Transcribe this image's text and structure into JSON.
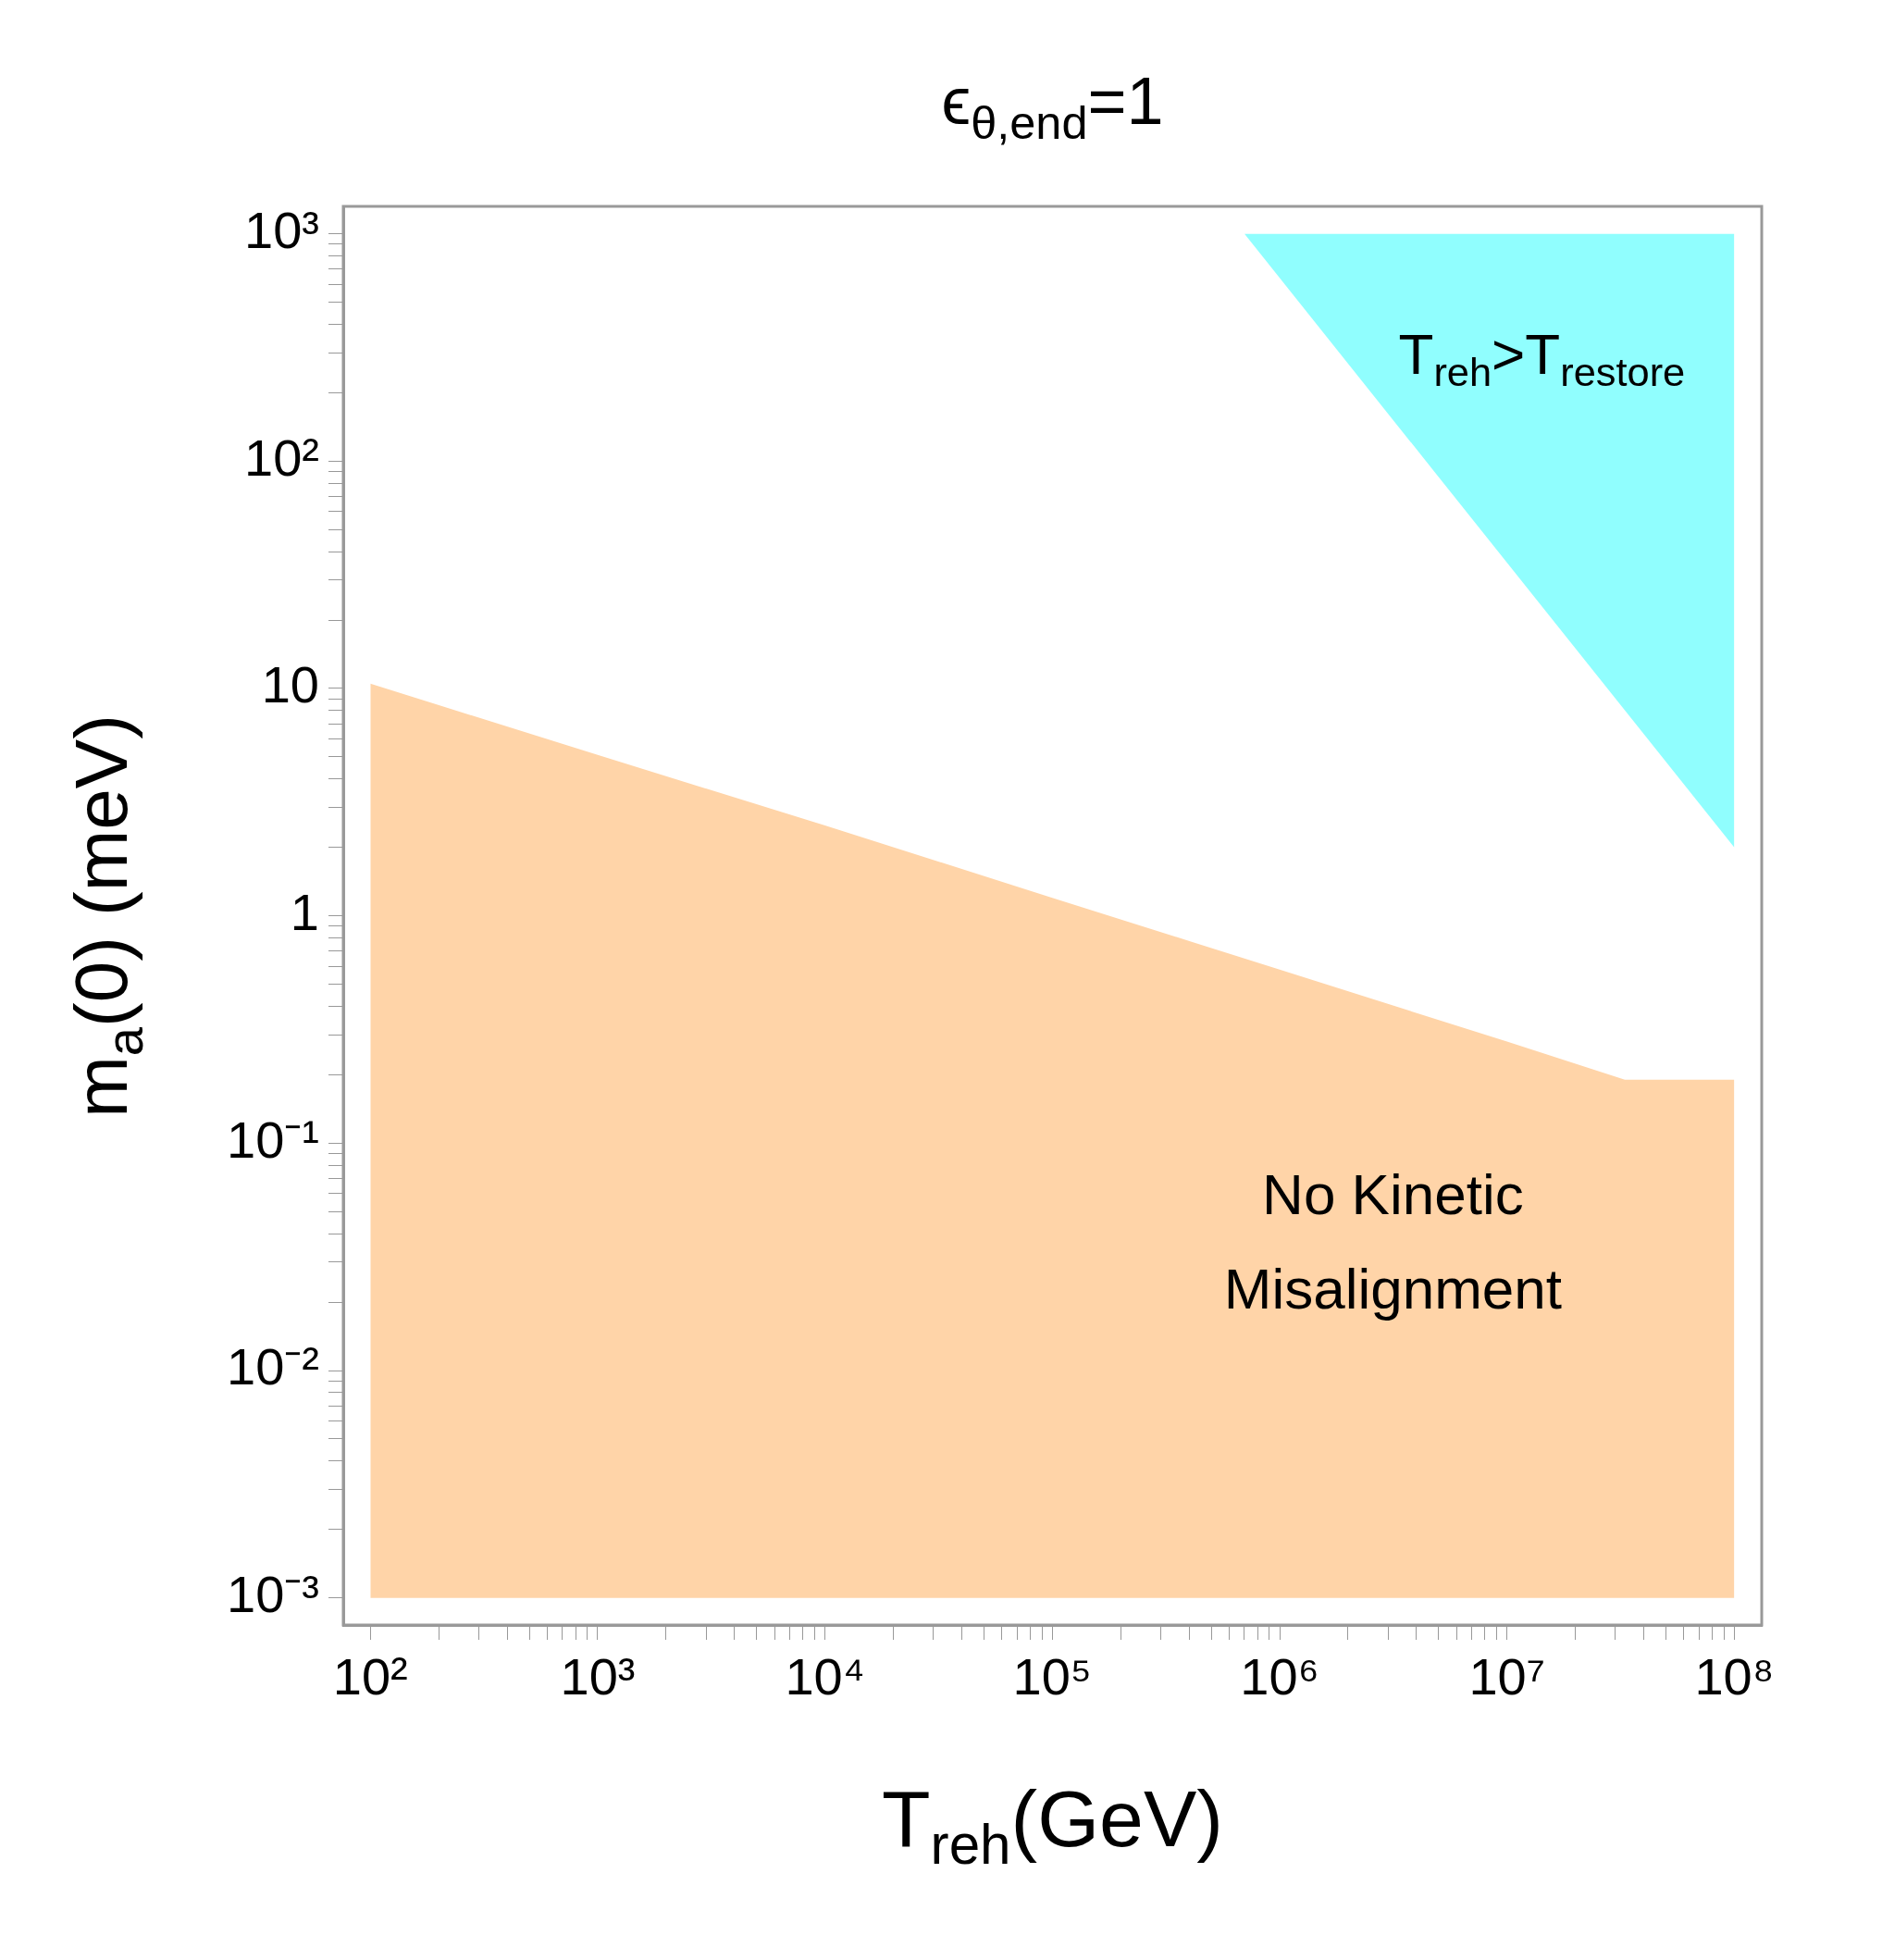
{
  "chart_data": {
    "type": "area",
    "title": "ϵ$_{θ,end}$=1",
    "xlabel": "T$_{reh}$(GeV)",
    "ylabel": "m$_{a}$(0) (meV)",
    "log": "xy",
    "legend": false,
    "xlim": [
      76,
      132000000
    ],
    "ylim": [
      0.00076,
      1320
    ],
    "xticks": [
      {
        "value": 100,
        "label": "10²"
      },
      {
        "value": 200,
        "label": null
      },
      {
        "value": 300,
        "label": null
      },
      {
        "value": 400,
        "label": null
      },
      {
        "value": 500,
        "label": null
      },
      {
        "value": 600,
        "label": null
      },
      {
        "value": 700,
        "label": null
      },
      {
        "value": 800,
        "label": null
      },
      {
        "value": 900,
        "label": null
      },
      {
        "value": 1000,
        "label": "10³"
      },
      {
        "value": 2000,
        "label": null
      },
      {
        "value": 3000,
        "label": null
      },
      {
        "value": 4000,
        "label": null
      },
      {
        "value": 5000,
        "label": null
      },
      {
        "value": 6000,
        "label": null
      },
      {
        "value": 7000,
        "label": null
      },
      {
        "value": 8000,
        "label": null
      },
      {
        "value": 9000,
        "label": null
      },
      {
        "value": 10000,
        "label": "10⁴"
      },
      {
        "value": 20000,
        "label": null
      },
      {
        "value": 30000,
        "label": null
      },
      {
        "value": 40000,
        "label": null
      },
      {
        "value": 50000,
        "label": null
      },
      {
        "value": 60000,
        "label": null
      },
      {
        "value": 70000,
        "label": null
      },
      {
        "value": 80000,
        "label": null
      },
      {
        "value": 90000,
        "label": null
      },
      {
        "value": 100000,
        "label": "10⁵"
      },
      {
        "value": 200000,
        "label": null
      },
      {
        "value": 300000,
        "label": null
      },
      {
        "value": 400000,
        "label": null
      },
      {
        "value": 500000,
        "label": null
      },
      {
        "value": 600000,
        "label": null
      },
      {
        "value": 700000,
        "label": null
      },
      {
        "value": 800000,
        "label": null
      },
      {
        "value": 900000,
        "label": null
      },
      {
        "value": 1000000,
        "label": "10⁶"
      },
      {
        "value": 2000000,
        "label": null
      },
      {
        "value": 3000000,
        "label": null
      },
      {
        "value": 4000000,
        "label": null
      },
      {
        "value": 5000000,
        "label": null
      },
      {
        "value": 6000000,
        "label": null
      },
      {
        "value": 7000000,
        "label": null
      },
      {
        "value": 8000000,
        "label": null
      },
      {
        "value": 9000000,
        "label": null
      },
      {
        "value": 10000000,
        "label": "10⁷"
      },
      {
        "value": 20000000,
        "label": null
      },
      {
        "value": 30000000,
        "label": null
      },
      {
        "value": 40000000,
        "label": null
      },
      {
        "value": 50000000,
        "label": null
      },
      {
        "value": 60000000,
        "label": null
      },
      {
        "value": 70000000,
        "label": null
      },
      {
        "value": 80000000,
        "label": null
      },
      {
        "value": 90000000,
        "label": null
      },
      {
        "value": 100000000,
        "label": "10⁸"
      }
    ],
    "yticks": [
      {
        "value": 0.001,
        "label": "10⁻³"
      },
      {
        "value": 0.002,
        "label": null
      },
      {
        "value": 0.003,
        "label": null
      },
      {
        "value": 0.004,
        "label": null
      },
      {
        "value": 0.005,
        "label": null
      },
      {
        "value": 0.006,
        "label": null
      },
      {
        "value": 0.007,
        "label": null
      },
      {
        "value": 0.008,
        "label": null
      },
      {
        "value": 0.009,
        "label": null
      },
      {
        "value": 0.01,
        "label": "10⁻²"
      },
      {
        "value": 0.02,
        "label": null
      },
      {
        "value": 0.03,
        "label": null
      },
      {
        "value": 0.04,
        "label": null
      },
      {
        "value": 0.05,
        "label": null
      },
      {
        "value": 0.06,
        "label": null
      },
      {
        "value": 0.07,
        "label": null
      },
      {
        "value": 0.08,
        "label": null
      },
      {
        "value": 0.09,
        "label": null
      },
      {
        "value": 0.1,
        "label": "10⁻¹"
      },
      {
        "value": 0.2,
        "label": null
      },
      {
        "value": 0.3,
        "label": null
      },
      {
        "value": 0.4,
        "label": null
      },
      {
        "value": 0.5,
        "label": null
      },
      {
        "value": 0.6,
        "label": null
      },
      {
        "value": 0.7,
        "label": null
      },
      {
        "value": 0.8,
        "label": null
      },
      {
        "value": 0.9,
        "label": null
      },
      1,
      {
        "value": 2,
        "label": null
      },
      {
        "value": 3,
        "label": null
      },
      {
        "value": 4,
        "label": null
      },
      {
        "value": 5,
        "label": null
      },
      {
        "value": 6,
        "label": null
      },
      {
        "value": 7,
        "label": null
      },
      {
        "value": 8,
        "label": null
      },
      {
        "value": 9,
        "label": null
      },
      10,
      {
        "value": 20,
        "label": null
      },
      {
        "value": 30,
        "label": null
      },
      {
        "value": 40,
        "label": null
      },
      {
        "value": 50,
        "label": null
      },
      {
        "value": 60,
        "label": null
      },
      {
        "value": 70,
        "label": null
      },
      {
        "value": 80,
        "label": null
      },
      {
        "value": 90,
        "label": null
      },
      {
        "value": 100,
        "label": "10²"
      },
      {
        "value": 200,
        "label": null
      },
      {
        "value": 300,
        "label": null
      },
      {
        "value": 400,
        "label": null
      },
      {
        "value": 500,
        "label": null
      },
      {
        "value": 600,
        "label": null
      },
      {
        "value": 700,
        "label": null
      },
      {
        "value": 800,
        "label": null
      },
      {
        "value": 900,
        "label": null
      },
      {
        "value": 1000,
        "label": "10³"
      }
    ],
    "series": [
      {
        "color": "#ffd4a8",
        "x": [
          100,
          1000,
          10000,
          100000,
          1000000,
          10000000,
          33000000,
          100000000
        ],
        "values": [
          10.5,
          5.1,
          2.5,
          1.2,
          0.58,
          0.28,
          0.19,
          0.19
        ]
      },
      {
        "color": "#90fefe",
        "x": [
          700000,
          100000000,
          100000000
        ],
        "values": [
          1000,
          2,
          1000
        ]
      }
    ],
    "annotations": [
      "No Kinetic Misalignment",
      "T$_{reh}$>T$_{restore}$"
    ]
  }
}
